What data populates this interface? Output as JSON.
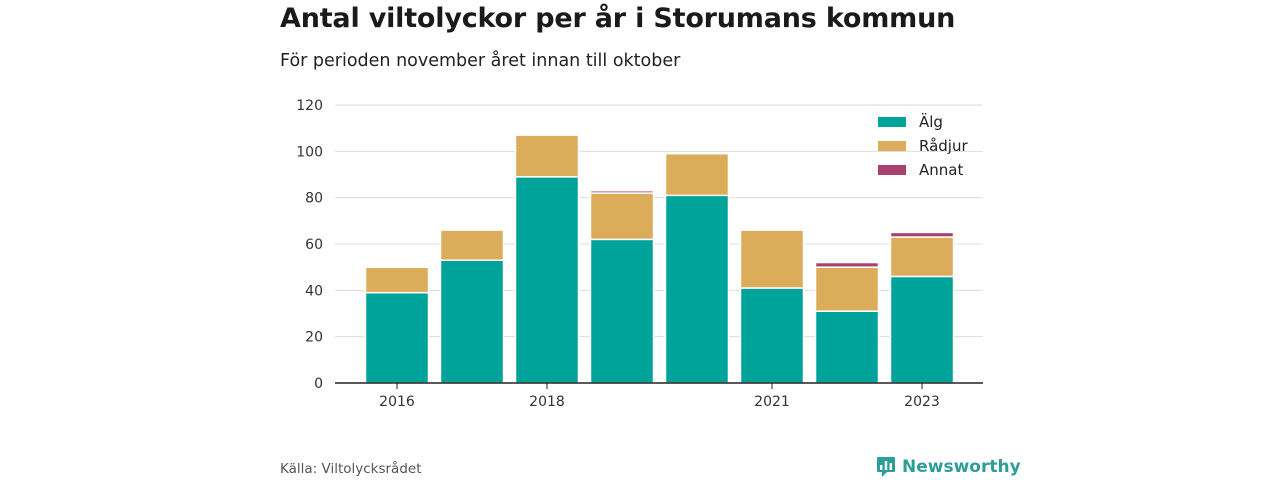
{
  "title": "Antal viltolyckor per år i Storumans kommun",
  "subtitle": "För perioden november året innan till oktober",
  "source": "Källa: Viltolycksrådet",
  "brand": {
    "name": "Newsworthy",
    "icon": "newsworthy-logo-icon",
    "color": "#2e9e98"
  },
  "chart_data": {
    "type": "bar",
    "stacked": true,
    "title": "Antal viltolyckor per år i Storumans kommun",
    "subtitle": "För perioden november året innan till oktober",
    "xlabel": "",
    "ylabel": "",
    "categories": [
      "2016",
      "2017",
      "2018",
      "2019",
      "2020",
      "2021",
      "2022",
      "2023"
    ],
    "tick_labels": [
      "2016",
      "",
      "2018",
      "",
      "",
      "2021",
      "",
      "2023"
    ],
    "series": [
      {
        "name": "Älg",
        "color": "#00a39a",
        "values": [
          39,
          53,
          89,
          62,
          81,
          41,
          31,
          46
        ]
      },
      {
        "name": "Rådjur",
        "color": "#dbad5a",
        "values": [
          11,
          13,
          18,
          20,
          18,
          25,
          19,
          17
        ]
      },
      {
        "name": "Annat",
        "color": "#a8416b",
        "values": [
          0,
          0,
          0,
          1,
          0,
          0,
          2,
          2
        ]
      }
    ],
    "ylim": [
      0,
      120
    ],
    "yticks": [
      0,
      20,
      40,
      60,
      80,
      100,
      120
    ],
    "grid": true,
    "legend": "top-right"
  }
}
